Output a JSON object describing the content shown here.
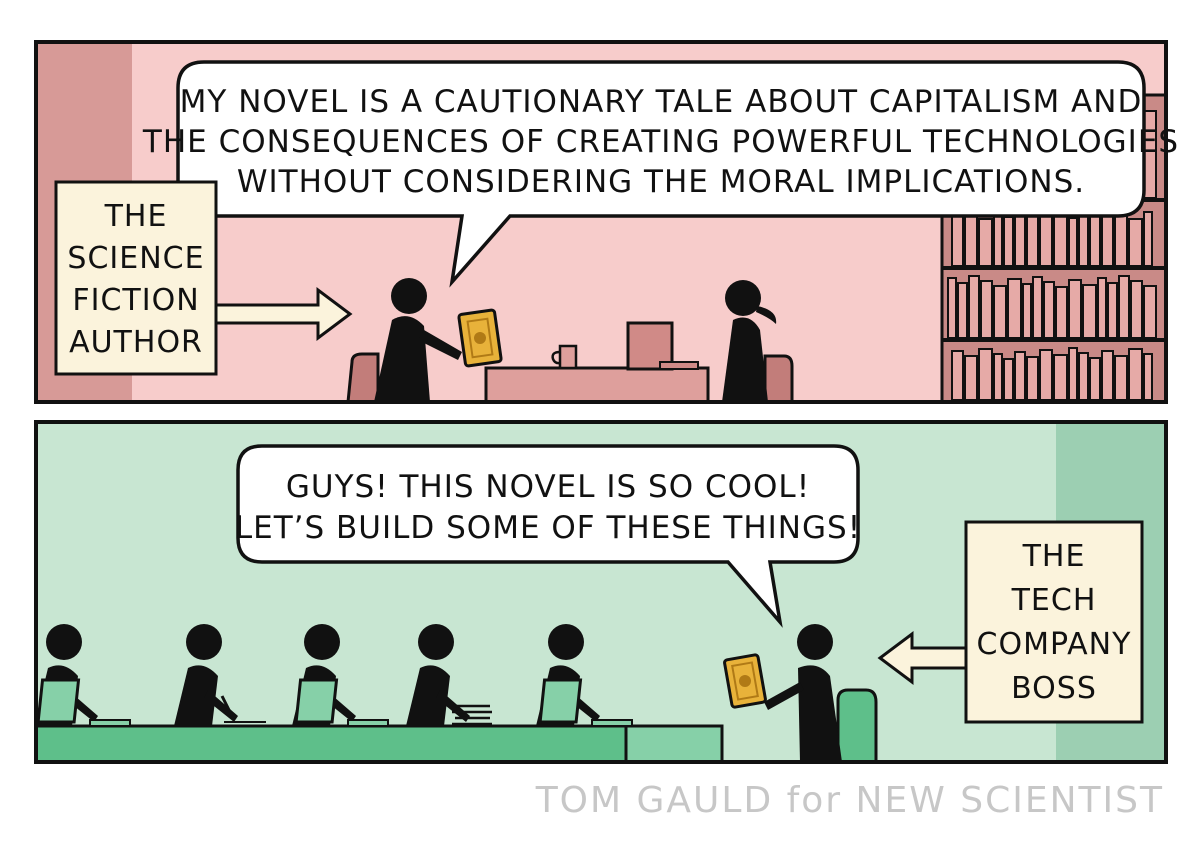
{
  "panel_top": {
    "speech_bubble": {
      "lines": [
        "MY NOVEL IS A CAUTIONARY TALE ABOUT CAPITALISM AND",
        "THE CONSEQUENCES OF CREATING POWERFUL TECHNOLOGIES",
        "WITHOUT CONSIDERING THE MORAL IMPLICATIONS."
      ]
    },
    "label": {
      "lines": [
        "THE",
        "SCIENCE",
        "FICTION",
        "AUTHOR"
      ]
    }
  },
  "panel_bottom": {
    "speech_bubble": {
      "lines": [
        "GUYS!  THIS NOVEL IS SO COOL!",
        "LET’S BUILD SOME OF THESE THINGS!"
      ]
    },
    "label": {
      "lines": [
        "THE",
        "TECH",
        "COMPANY",
        "BOSS"
      ]
    }
  },
  "credit": "TOM GAULD for NEW SCIENTIST",
  "colors": {
    "panel_top_bg": "#f7cccb",
    "panel_top_wall": "#d79a97",
    "panel_bottom_bg": "#c8e6d2",
    "panel_bottom_wall": "#9ccfb2",
    "desk_top": "#de9f9c",
    "desk_bottom": "#5ebf8a",
    "label_bg": "#fbf3dc",
    "book_cover": "#e8b23a",
    "ink": "#111111",
    "credit": "#c7c7c7"
  }
}
